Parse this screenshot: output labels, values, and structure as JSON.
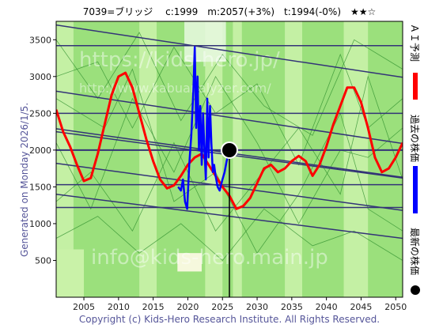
{
  "header": {
    "title": "7039=ブリッジ　 c:1999　m:2057(+3%)　t:1994(-0%)　★★☆"
  },
  "side": {
    "generated": "Generated on Monday 2026/1/5.",
    "copyright": "Copyright (c) Kids-Hero Research Institute. All Rights Reserved."
  },
  "watermarks": {
    "top": "https://kids-hero.jp/",
    "mid": "http://www.kabuanalyzer.com/",
    "bottom": "info@kids-hero.main.jp"
  },
  "legend": {
    "ai": "ＡＩ予測",
    "past": "過去の株価",
    "latest": "最新の株価"
  },
  "colors": {
    "ai": "#ff0000",
    "past": "#0000ff",
    "latest": "#000000",
    "band": "#9be07c",
    "bandLight": "#c9f2a8",
    "channel": "#333377",
    "thinGreen": "#2a8a2a"
  },
  "chart_data": {
    "type": "line",
    "xlim": [
      2001,
      2051
    ],
    "ylim": [
      0,
      3750
    ],
    "xticks": [
      2005,
      2010,
      2015,
      2020,
      2025,
      2030,
      2035,
      2040,
      2045,
      2050
    ],
    "yticks": [
      500,
      1000,
      1500,
      2000,
      2500,
      3000,
      3500
    ],
    "hlines": [
      3420,
      2500,
      2000,
      1530,
      1220
    ],
    "trendlines": [
      {
        "x": [
          2001,
          2051
        ],
        "y": [
          3700,
          2990
        ]
      },
      {
        "x": [
          2001,
          2051
        ],
        "y": [
          2800,
          2090
        ]
      },
      {
        "x": [
          2001,
          2051
        ],
        "y": [
          2290,
          1630
        ]
      },
      {
        "x": [
          2001,
          2051
        ],
        "y": [
          2250,
          1620
        ]
      },
      {
        "x": [
          2001,
          2051
        ],
        "y": [
          1820,
          1180
        ]
      },
      {
        "x": [
          2001,
          2051
        ],
        "y": [
          1400,
          800
        ]
      }
    ],
    "series": [
      {
        "name": "ＡＩ予測",
        "x": [
          2001,
          2002,
          2003,
          2004,
          2005,
          2006,
          2007,
          2008,
          2009,
          2010,
          2011,
          2012,
          2013,
          2014,
          2015,
          2016,
          2017,
          2018,
          2019,
          2020,
          2021,
          2022,
          2023,
          2024,
          2025,
          2026,
          2027,
          2028,
          2029,
          2030,
          2031,
          2032,
          2033,
          2034,
          2035,
          2036,
          2037,
          2038,
          2039,
          2040,
          2041,
          2042,
          2043,
          2044,
          2045,
          2046,
          2047,
          2048,
          2049,
          2050,
          2051
        ],
        "y": [
          2550,
          2250,
          2050,
          1800,
          1580,
          1620,
          1950,
          2350,
          2750,
          3000,
          3050,
          2850,
          2500,
          2150,
          1850,
          1600,
          1480,
          1520,
          1650,
          1800,
          1900,
          1950,
          1800,
          1650,
          1500,
          1380,
          1200,
          1240,
          1350,
          1550,
          1750,
          1800,
          1700,
          1750,
          1850,
          1920,
          1850,
          1650,
          1800,
          2050,
          2350,
          2600,
          2850,
          2850,
          2650,
          2300,
          1900,
          1700,
          1750,
          1900,
          2100
        ]
      },
      {
        "name": "過去の株価",
        "x": [
          2018.6,
          2019.0,
          2019.3,
          2019.6,
          2019.9,
          2020.2,
          2020.5,
          2020.8,
          2021.0,
          2021.2,
          2021.4,
          2021.6,
          2021.8,
          2022.0,
          2022.2,
          2022.4,
          2022.6,
          2022.8,
          2023.0,
          2023.2,
          2023.4,
          2023.6,
          2023.8,
          2024.0,
          2024.3,
          2024.6,
          2025.0,
          2025.3,
          2025.6,
          2025.9
        ],
        "y": [
          1500,
          1450,
          1600,
          1300,
          1200,
          1800,
          2200,
          2800,
          3400,
          2300,
          3000,
          2000,
          2600,
          1800,
          2500,
          2000,
          1600,
          2700,
          1900,
          2600,
          2100,
          1700,
          1800,
          1650,
          1500,
          1450,
          1600,
          1700,
          1850,
          1950
        ]
      }
    ],
    "latest": {
      "x": 2026,
      "y": 1999,
      "name": "最新の株価"
    }
  }
}
